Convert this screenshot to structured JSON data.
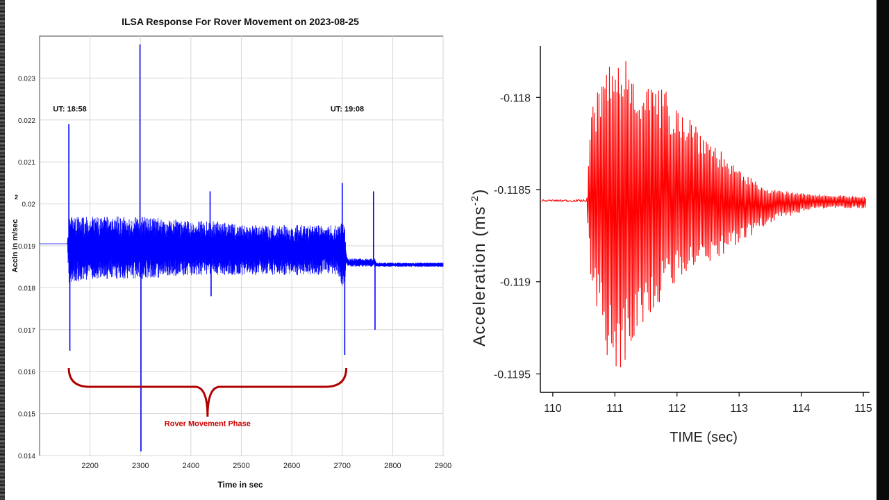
{
  "chart_data": [
    {
      "type": "line",
      "title": "ILSA Response For Rover Movement on 2023-08-25",
      "xlabel": "Time in sec",
      "ylabel": "Accln in m/sec",
      "ylabel_superscript": "2",
      "xlim": [
        2100,
        2900
      ],
      "ylim": [
        0.014,
        0.024
      ],
      "x_ticks": [
        "2200",
        "2300",
        "2400",
        "2500",
        "2600",
        "2700",
        "2800",
        "2900"
      ],
      "y_ticks": [
        "0.014",
        "0.015",
        "0.016",
        "0.017",
        "0.018",
        "0.019",
        "0.02",
        "0.021",
        "0.022",
        "0.023"
      ],
      "grid": true,
      "line_color": "#0000ff",
      "annotations": [
        {
          "text": "UT: 18:58",
          "x": 2160,
          "y": 0.0222
        },
        {
          "text": "UT: 19:08",
          "x": 2710,
          "y": 0.0222
        },
        {
          "text": "Rover Movement Phase",
          "x": 2433,
          "y": 0.0147,
          "color": "#cc0000"
        }
      ],
      "brace": {
        "x_start": 2158,
        "x_end": 2708,
        "color": "#b00000"
      },
      "series": [
        {
          "x": [
            2100,
            2155,
            2158,
            2160,
            2162,
            2200,
            2299,
            2301,
            2303,
            2400,
            2438,
            2440,
            2500,
            2600,
            2690,
            2700,
            2705,
            2708,
            2712,
            2750,
            2762,
            2765,
            2768,
            2800,
            2900
          ],
          "baseline": [
            0.01905,
            0.01905,
            0.0219,
            0.0165,
            0.01905,
            0.019,
            0.0238,
            0.0141,
            0.019,
            0.019,
            0.0203,
            0.0178,
            0.0189,
            0.0188,
            0.0187,
            0.0205,
            0.0164,
            0.0187,
            0.0186,
            0.0186,
            0.0203,
            0.017,
            0.0185,
            0.0186,
            0.0186
          ],
          "envelope_upper": [
            0.01905,
            0.01905,
            0.0197,
            0.0197,
            0.0197,
            0.0197,
            0.0197,
            0.0197,
            0.0197,
            0.0196,
            0.0196,
            0.0196,
            0.0195,
            0.0195,
            0.0195,
            0.0196,
            0.0196,
            0.0188,
            0.0187,
            0.0187,
            0.0187,
            0.0187,
            0.0186,
            0.0186,
            0.0186
          ],
          "envelope_lower": [
            0.01905,
            0.01905,
            0.0181,
            0.0181,
            0.0181,
            0.0182,
            0.0182,
            0.0182,
            0.0182,
            0.0183,
            0.0183,
            0.0183,
            0.0183,
            0.0183,
            0.0183,
            0.018,
            0.018,
            0.0186,
            0.0185,
            0.0185,
            0.0185,
            0.0185,
            0.0185,
            0.0185,
            0.0185
          ]
        }
      ]
    },
    {
      "type": "line",
      "title": "",
      "xlabel": "TIME (sec)",
      "ylabel": "Acceleration (ms",
      "ylabel_superscript": "-2",
      "ylabel_suffix": ")",
      "xlim": [
        109.8,
        115.1
      ],
      "ylim": [
        -0.1196,
        -0.11772
      ],
      "x_ticks": [
        "110",
        "111",
        "112",
        "113",
        "114",
        "115"
      ],
      "y_ticks": [
        "-0.118",
        "-0.1185",
        "-0.119",
        "-0.1195"
      ],
      "grid": false,
      "line_color": "#ff0000",
      "series": [
        {
          "signal_start": 110.55,
          "signal_end": 115.05,
          "baseline": -0.11856,
          "peak_high": -0.11775,
          "peak_low": -0.11958,
          "peak_time": 111.0,
          "x": [
            109.8,
            110.55,
            110.6,
            110.8,
            111.0,
            111.2,
            111.5,
            112.0,
            112.5,
            113.0,
            113.5,
            114.0,
            114.5,
            115.05
          ],
          "upper": [
            -0.11856,
            -0.11856,
            -0.1181,
            -0.11785,
            -0.11778,
            -0.11775,
            -0.1179,
            -0.118,
            -0.1182,
            -0.1184,
            -0.1185,
            -0.11852,
            -0.11853,
            -0.11854
          ],
          "lower": [
            -0.11856,
            -0.11856,
            -0.119,
            -0.1193,
            -0.11958,
            -0.1194,
            -0.1192,
            -0.119,
            -0.1189,
            -0.1188,
            -0.11868,
            -0.11862,
            -0.1186,
            -0.1186
          ]
        }
      ]
    }
  ]
}
